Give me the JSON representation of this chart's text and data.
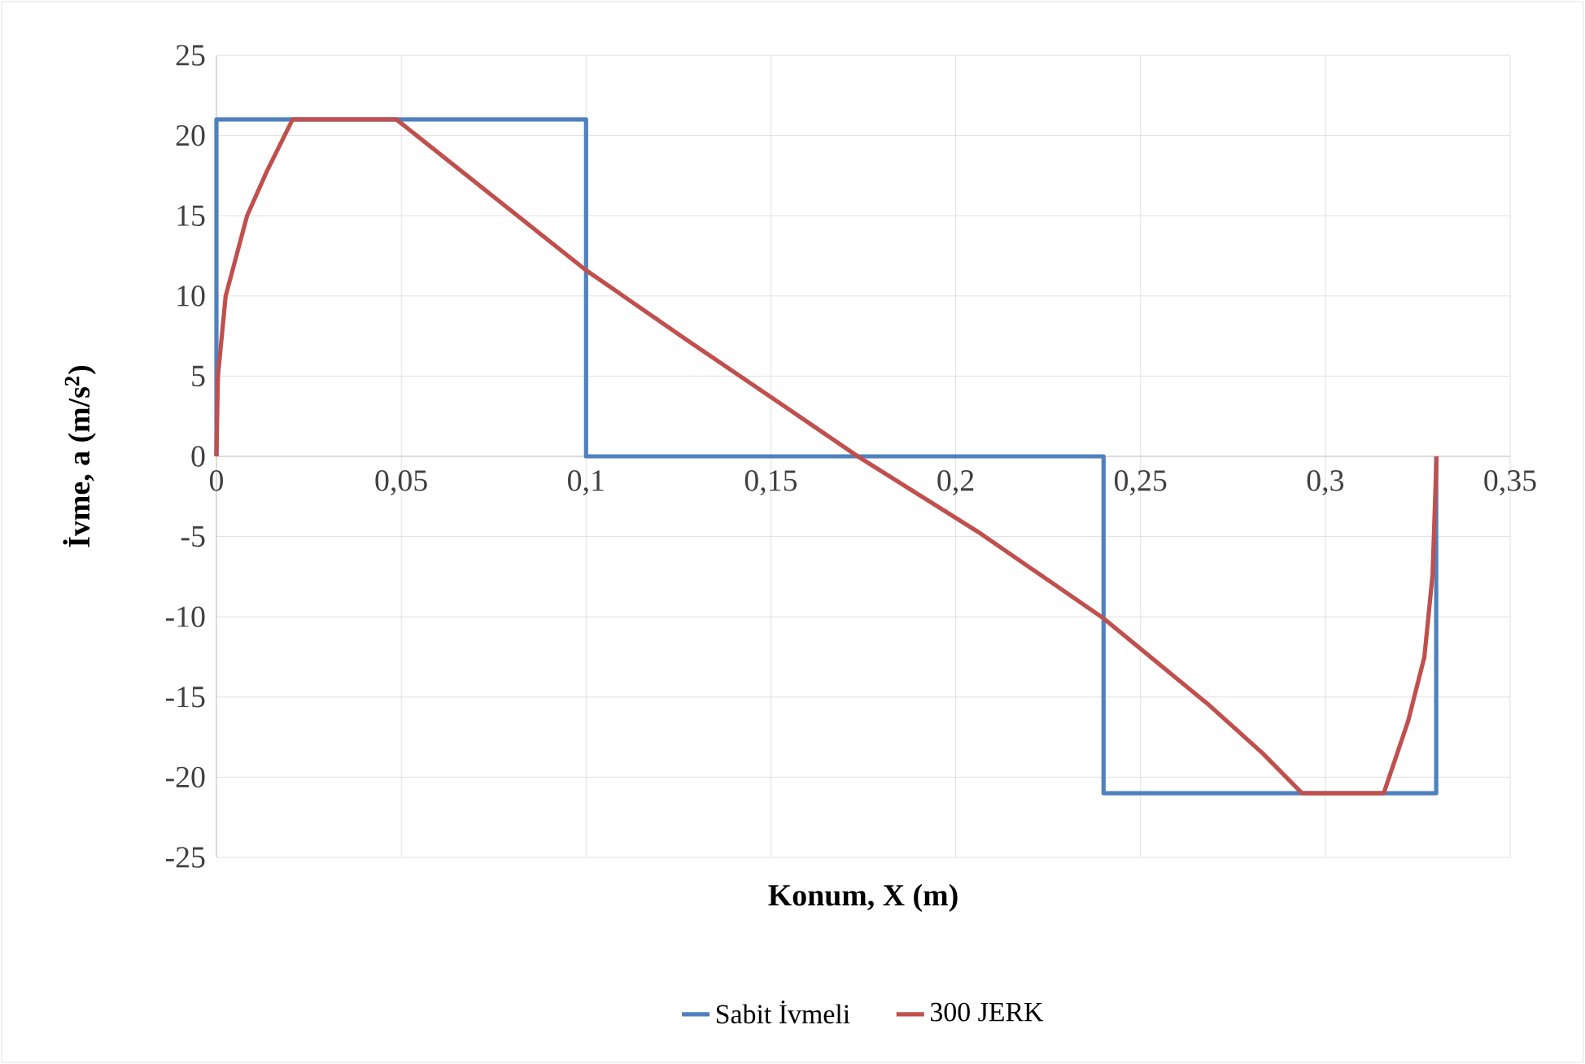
{
  "chart_data": {
    "type": "line",
    "xlabel": "Konum, X (m)",
    "ylabel": "İvme, a (m/s$^{2}$)",
    "xlim": [
      0,
      0.35
    ],
    "ylim": [
      -25,
      25
    ],
    "xticks": [
      {
        "value": 0,
        "label": "0"
      },
      {
        "value": 0.05,
        "label": "0,05"
      },
      {
        "value": 0.1,
        "label": "0,1"
      },
      {
        "value": 0.15,
        "label": "0,15"
      },
      {
        "value": 0.2,
        "label": "0,2"
      },
      {
        "value": 0.25,
        "label": "0,25"
      },
      {
        "value": 0.3,
        "label": "0,3"
      },
      {
        "value": 0.35,
        "label": "0,35"
      }
    ],
    "yticks": [
      -25,
      -20,
      -15,
      -10,
      -5,
      0,
      5,
      10,
      15,
      20,
      25
    ],
    "grid": true,
    "legend": "bottom",
    "marker": "none",
    "line_style": "solid",
    "series": [
      {
        "name": "Sabit İvmeli",
        "color": "#4f81bd",
        "x": [
          0,
          0,
          0.1,
          0.1,
          0.24,
          0.24,
          0.33,
          0.33
        ],
        "values": [
          0,
          21,
          21,
          0,
          0,
          -21,
          -21,
          0
        ]
      },
      {
        "name": "300 JERK",
        "color": "#c0504d",
        "x": [
          0,
          0.0004,
          0.0025,
          0.0083,
          0.0135,
          0.0206,
          0.0487,
          0.1,
          0.127,
          0.15,
          0.1735,
          0.206,
          0.24,
          0.268,
          0.283,
          0.2937,
          0.3158,
          0.3224,
          0.3268,
          0.329,
          0.3301
        ],
        "values": [
          0,
          5,
          10,
          15,
          17.7,
          21,
          21,
          11.6,
          7.3,
          3.7,
          0,
          -4.7,
          -10.1,
          -15.4,
          -18.5,
          -21,
          -21,
          -16.5,
          -12.5,
          -7.4,
          0
        ]
      }
    ]
  }
}
